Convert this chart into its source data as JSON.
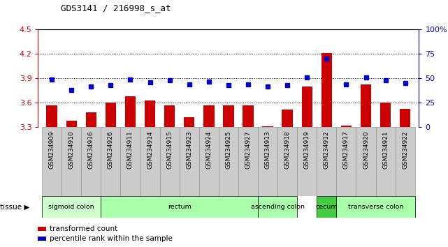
{
  "title": "GDS3141 / 216998_s_at",
  "samples": [
    "GSM234909",
    "GSM234910",
    "GSM234916",
    "GSM234926",
    "GSM234911",
    "GSM234914",
    "GSM234915",
    "GSM234923",
    "GSM234924",
    "GSM234925",
    "GSM234927",
    "GSM234913",
    "GSM234918",
    "GSM234919",
    "GSM234912",
    "GSM234917",
    "GSM234920",
    "GSM234921",
    "GSM234922"
  ],
  "bar_values": [
    3.57,
    3.38,
    3.48,
    3.6,
    3.68,
    3.63,
    3.57,
    3.42,
    3.57,
    3.57,
    3.57,
    3.31,
    3.52,
    3.8,
    4.21,
    3.32,
    3.83,
    3.6,
    3.53
  ],
  "dot_values": [
    49,
    38,
    42,
    43,
    49,
    46,
    48,
    44,
    47,
    43,
    44,
    42,
    43,
    51,
    70,
    44,
    51,
    48,
    45
  ],
  "ylim_left": [
    3.3,
    4.5
  ],
  "ylim_right": [
    0,
    100
  ],
  "yticks_left": [
    3.3,
    3.6,
    3.9,
    4.2,
    4.5
  ],
  "yticks_right": [
    0,
    25,
    50,
    75,
    100
  ],
  "ytick_labels_right": [
    "0",
    "25",
    "50",
    "75",
    "100%"
  ],
  "grid_values": [
    3.6,
    3.9,
    4.2
  ],
  "bar_color": "#cc0000",
  "dot_color": "#0000cc",
  "bar_bottom": 3.3,
  "tissue_data": [
    {
      "label": "sigmoid colon",
      "start": 0,
      "end": 3,
      "color": "#ccffcc"
    },
    {
      "label": "rectum",
      "start": 3,
      "end": 11,
      "color": "#aaffaa"
    },
    {
      "label": "ascending colon",
      "start": 11,
      "end": 13,
      "color": "#aaffaa"
    },
    {
      "label": "cecum",
      "start": 14,
      "end": 15,
      "color": "#44cc44"
    },
    {
      "label": "transverse colon",
      "start": 15,
      "end": 19,
      "color": "#aaffaa"
    }
  ],
  "legend_bar_label": "transformed count",
  "legend_dot_label": "percentile rank within the sample",
  "left_axis_color": "#cc0000",
  "right_axis_color": "#0000cc",
  "sample_box_color": "#cccccc",
  "plot_bg": "#ffffff"
}
